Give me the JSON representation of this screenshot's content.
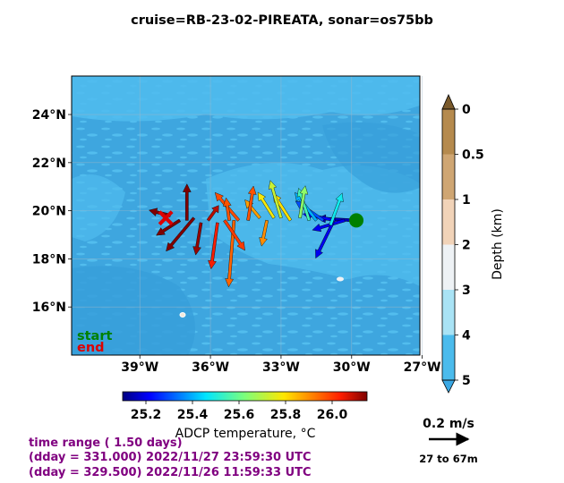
{
  "title": "cruise=RB-23-02-PIREATA,   sonar=os75bb",
  "chart_data": {
    "type": "map-vector",
    "lon_ticks": [
      "39°W",
      "36°W",
      "33°W",
      "30°W",
      "27°W"
    ],
    "lat_ticks": [
      "16°N",
      "18°N",
      "20°N",
      "22°N",
      "24°N"
    ],
    "lon_range": [
      -41.9,
      -27.1
    ],
    "lat_range": [
      14.0,
      25.6
    ],
    "start_label": "start",
    "end_label": "end",
    "start_point": {
      "lon": -29.8,
      "lat": 19.6
    },
    "end_point": {
      "lon": -37.9,
      "lat": 19.7
    },
    "colors": {
      "start": "#008000",
      "end": "#dd0000"
    },
    "depth_colorbar": {
      "label": "Depth (km)",
      "ticks": [
        "0",
        "0.5",
        "1",
        "2",
        "3",
        "4",
        "5"
      ],
      "colors": [
        "#7a5a2c",
        "#b58a4e",
        "#cfa673",
        "#f1d3b8",
        "#eef2f5",
        "#a9e3f5",
        "#4bbbec",
        "#3aa8e4"
      ]
    },
    "temp_colorbar": {
      "label": "ADCP temperature, °C",
      "ticks": [
        "25.2",
        "25.4",
        "25.6",
        "25.8",
        "26.0"
      ],
      "range": [
        25.1,
        26.15
      ]
    },
    "scale_label": "0.2 m/s",
    "depth_range_label": "27 to 67m",
    "vectors": [
      {
        "lon": -29.9,
        "lat": 19.6,
        "u": -0.34,
        "v": 0.02,
        "t": 25.15
      },
      {
        "lon": -30.3,
        "lat": 19.6,
        "u": -0.3,
        "v": -0.09,
        "t": 25.2
      },
      {
        "lon": -30.7,
        "lat": 19.6,
        "u": -0.3,
        "v": 0.06,
        "t": 25.22
      },
      {
        "lon": -30.8,
        "lat": 19.5,
        "u": -0.16,
        "v": -0.33,
        "t": 25.2
      },
      {
        "lon": -30.9,
        "lat": 19.4,
        "u": 0.11,
        "v": 0.3,
        "t": 25.48
      },
      {
        "lon": -31.2,
        "lat": 19.6,
        "u": -0.26,
        "v": 0.18,
        "t": 25.3
      },
      {
        "lon": -31.5,
        "lat": 19.6,
        "u": -0.2,
        "v": 0.26,
        "t": 25.4
      },
      {
        "lon": -31.8,
        "lat": 19.6,
        "u": -0.1,
        "v": 0.3,
        "t": 25.55
      },
      {
        "lon": -32.2,
        "lat": 19.7,
        "u": 0.05,
        "v": 0.3,
        "t": 25.65
      },
      {
        "lon": -32.6,
        "lat": 19.6,
        "u": -0.16,
        "v": 0.25,
        "t": 25.8
      },
      {
        "lon": -33.0,
        "lat": 19.7,
        "u": -0.1,
        "v": 0.35,
        "t": 25.72
      },
      {
        "lon": -33.3,
        "lat": 19.7,
        "u": -0.15,
        "v": 0.24,
        "t": 25.78
      },
      {
        "lon": -33.6,
        "lat": 19.6,
        "u": -0.05,
        "v": -0.24,
        "t": 25.9
      },
      {
        "lon": -33.9,
        "lat": 19.7,
        "u": -0.14,
        "v": 0.17,
        "t": 25.88
      },
      {
        "lon": -34.4,
        "lat": 19.6,
        "u": 0.05,
        "v": 0.32,
        "t": 25.97
      },
      {
        "lon": -34.8,
        "lat": 19.6,
        "u": -0.22,
        "v": 0.26,
        "t": 25.98
      },
      {
        "lon": -35.0,
        "lat": 19.6,
        "u": -0.05,
        "v": -0.62,
        "t": 25.95
      },
      {
        "lon": -35.2,
        "lat": 19.6,
        "u": -0.03,
        "v": 0.21,
        "t": 25.97
      },
      {
        "lon": -35.4,
        "lat": 19.6,
        "u": 0.19,
        "v": -0.28,
        "t": 26.0
      },
      {
        "lon": -35.7,
        "lat": 19.5,
        "u": -0.06,
        "v": -0.43,
        "t": 26.04
      },
      {
        "lon": -36.1,
        "lat": 19.6,
        "u": 0.1,
        "v": 0.14,
        "t": 26.1
      },
      {
        "lon": -36.4,
        "lat": 19.5,
        "u": -0.05,
        "v": -0.3,
        "t": 26.13
      },
      {
        "lon": -36.7,
        "lat": 19.7,
        "u": -0.26,
        "v": -0.31,
        "t": 26.17
      },
      {
        "lon": -37.0,
        "lat": 19.6,
        "u": 0.0,
        "v": 0.34,
        "t": 26.2
      },
      {
        "lon": -37.3,
        "lat": 19.6,
        "u": -0.22,
        "v": -0.14,
        "t": 26.22
      },
      {
        "lon": -37.7,
        "lat": 19.8,
        "u": -0.2,
        "v": 0.05,
        "t": 26.25
      }
    ]
  },
  "time_range": {
    "line1": "time range ( 1.50 days)",
    "line2": "(dday = 331.000) 2022/11/27 23:59:30 UTC",
    "line3": "(dday = 329.500) 2022/11/26 11:59:33 UTC"
  }
}
